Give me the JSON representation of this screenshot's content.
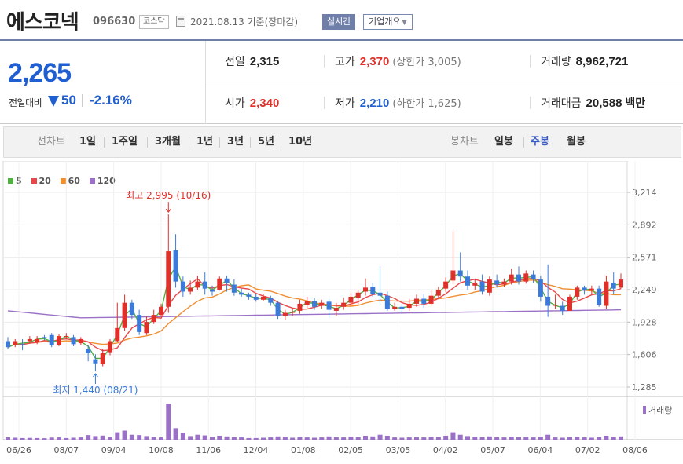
{
  "header": {
    "stock_name": "에스코넥",
    "stock_code": "096630",
    "market": "코스닥",
    "date_text": "2021.08.13 기준(장마감)",
    "realtime_label": "실시간",
    "corp_overview_label": "기업개요",
    "calendar_icon": "calendar-icon",
    "dropdown_icon": "chevron-down-icon"
  },
  "quote": {
    "price": "2,265",
    "change_label": "전일대비",
    "change_direction_icon": "down-triangle-icon",
    "change_value": "50",
    "change_pct": "-2.16%",
    "prev_close_label": "전일",
    "prev_close": "2,315",
    "high_label": "고가",
    "high": "2,370",
    "upper_limit": "(상한가 3,005)",
    "volume_label": "거래량",
    "volume": "8,962,721",
    "open_label": "시가",
    "open": "2,340",
    "low_label": "저가",
    "low": "2,210",
    "lower_limit": "(하한가 1,625)",
    "value_label": "거래대금",
    "value": "20,588",
    "value_unit": "백만",
    "colors": {
      "up": "#e0302a",
      "down": "#1f5fd1"
    }
  },
  "period_bar": {
    "line_chart_label": "선차트",
    "line_periods": [
      "1일",
      "1주일",
      "3개월",
      "1년",
      "3년",
      "5년",
      "10년"
    ],
    "candle_chart_label": "봉차트",
    "candle_periods": [
      "일봉",
      "주봉",
      "월봉"
    ],
    "active_candle": "주봉"
  },
  "chart_data": {
    "type": "candlestick",
    "title": "",
    "ma_legend": [
      {
        "name": "5",
        "color": "#52b043"
      },
      {
        "name": "20",
        "color": "#e8484a"
      },
      {
        "name": "60",
        "color": "#f08f32"
      },
      {
        "name": "120",
        "color": "#9b71c7"
      }
    ],
    "ylim": [
      1285,
      3214
    ],
    "y_ticks": [
      "3,214",
      "2,892",
      "2,571",
      "2,249",
      "1,928",
      "1,606",
      "1,285"
    ],
    "x_ticks": [
      "06/26",
      "08/07",
      "09/04",
      "10/08",
      "11/06",
      "12/04",
      "01/08",
      "02/05",
      "03/05",
      "04/02",
      "05/07",
      "06/04",
      "07/02",
      "08/06"
    ],
    "annotations": {
      "high": "최고 2,995 (10/16)",
      "low": "최저 1,440 (08/21)"
    },
    "volume_label": "거래량",
    "colors": {
      "up": "#e0302a",
      "down": "#3b7ad9",
      "volume": "#9b71c7"
    },
    "candles": [
      [
        1740,
        1680,
        1780,
        1660,
        "dn",
        15
      ],
      [
        1700,
        1740,
        1760,
        1680,
        "up",
        12
      ],
      [
        1710,
        1700,
        1760,
        1650,
        "dn",
        10
      ],
      [
        1740,
        1760,
        1790,
        1720,
        "up",
        11
      ],
      [
        1730,
        1760,
        1790,
        1710,
        "up",
        10
      ],
      [
        1780,
        1770,
        1800,
        1750,
        "dn",
        9
      ],
      [
        1800,
        1700,
        1820,
        1680,
        "dn",
        13
      ],
      [
        1700,
        1790,
        1810,
        1690,
        "up",
        14
      ],
      [
        1790,
        1790,
        1820,
        1760,
        "up",
        10
      ],
      [
        1780,
        1710,
        1800,
        1690,
        "dn",
        12
      ],
      [
        1720,
        1760,
        1780,
        1700,
        "up",
        14
      ],
      [
        1660,
        1620,
        1700,
        1540,
        "dn",
        28
      ],
      [
        1560,
        1520,
        1610,
        1440,
        "dn",
        22
      ],
      [
        1510,
        1620,
        1660,
        1490,
        "up",
        25
      ],
      [
        1630,
        1740,
        1760,
        1600,
        "up",
        16
      ],
      [
        1740,
        1870,
        2120,
        1730,
        "up",
        45
      ],
      [
        1870,
        2120,
        2200,
        1840,
        "up",
        55
      ],
      [
        2120,
        2000,
        2150,
        1960,
        "dn",
        30
      ],
      [
        2000,
        1830,
        2050,
        1800,
        "dn",
        28
      ],
      [
        1820,
        1930,
        1990,
        1800,
        "up",
        22
      ],
      [
        1930,
        2000,
        2050,
        1910,
        "up",
        16
      ],
      [
        2000,
        2080,
        2110,
        1980,
        "up",
        14
      ],
      [
        2080,
        2630,
        2995,
        2020,
        "up",
        220
      ],
      [
        2640,
        2330,
        2800,
        2270,
        "dn",
        70
      ],
      [
        2330,
        2230,
        2380,
        2180,
        "dn",
        40
      ],
      [
        2230,
        2270,
        2340,
        2200,
        "up",
        22
      ],
      [
        2270,
        2330,
        2390,
        2250,
        "up",
        30
      ],
      [
        2330,
        2260,
        2420,
        2200,
        "dn",
        26
      ],
      [
        2250,
        2230,
        2290,
        2190,
        "dn",
        18
      ],
      [
        2250,
        2360,
        2380,
        2240,
        "up",
        24
      ],
      [
        2360,
        2320,
        2390,
        2230,
        "dn",
        20
      ],
      [
        2300,
        2220,
        2350,
        2190,
        "dn",
        16
      ],
      [
        2220,
        2200,
        2260,
        2180,
        "dn",
        14
      ],
      [
        2200,
        2180,
        2220,
        2150,
        "dn",
        10
      ],
      [
        2180,
        2150,
        2210,
        2130,
        "dn",
        10
      ],
      [
        2150,
        2180,
        2210,
        2140,
        "up",
        12
      ],
      [
        2170,
        2120,
        2190,
        2090,
        "dn",
        14
      ],
      [
        2120,
        1990,
        2140,
        1960,
        "dn",
        20
      ],
      [
        1990,
        2020,
        2050,
        1950,
        "up",
        18
      ],
      [
        2020,
        2030,
        2060,
        1990,
        "up",
        12
      ],
      [
        2040,
        2110,
        2150,
        2010,
        "up",
        18
      ],
      [
        2100,
        2140,
        2180,
        2070,
        "up",
        14
      ],
      [
        2140,
        2080,
        2170,
        2050,
        "dn",
        12
      ],
      [
        2090,
        2120,
        2150,
        2060,
        "up",
        14
      ],
      [
        2130,
        2050,
        2160,
        1970,
        "dn",
        20
      ],
      [
        2040,
        2070,
        2120,
        1990,
        "up",
        16
      ],
      [
        2080,
        2120,
        2170,
        2050,
        "up",
        14
      ],
      [
        2120,
        2180,
        2220,
        2090,
        "up",
        18
      ],
      [
        2170,
        2220,
        2240,
        2100,
        "up",
        16
      ],
      [
        2230,
        2270,
        2360,
        2190,
        "up",
        24
      ],
      [
        2280,
        2210,
        2320,
        2180,
        "dn",
        20
      ],
      [
        2220,
        2190,
        2480,
        2100,
        "dn",
        30
      ],
      [
        2190,
        2060,
        2230,
        2040,
        "dn",
        24
      ],
      [
        2060,
        2080,
        2120,
        2040,
        "up",
        14
      ],
      [
        2080,
        2060,
        2110,
        2030,
        "dn",
        12
      ],
      [
        2070,
        2110,
        2160,
        2040,
        "up",
        14
      ],
      [
        2110,
        2160,
        2200,
        2080,
        "up",
        16
      ],
      [
        2160,
        2110,
        2210,
        2070,
        "dn",
        14
      ],
      [
        2110,
        2190,
        2250,
        2090,
        "up",
        18
      ],
      [
        2190,
        2250,
        2280,
        2160,
        "up",
        18
      ],
      [
        2260,
        2330,
        2370,
        2230,
        "up",
        24
      ],
      [
        2340,
        2440,
        2830,
        2300,
        "up",
        45
      ],
      [
        2440,
        2380,
        2620,
        2330,
        "dn",
        30
      ],
      [
        2380,
        2290,
        2440,
        2250,
        "dn",
        22
      ],
      [
        2290,
        2320,
        2360,
        2250,
        "up",
        18
      ],
      [
        2330,
        2230,
        2400,
        2200,
        "dn",
        16
      ],
      [
        2220,
        2350,
        2380,
        2190,
        "up",
        20
      ],
      [
        2340,
        2300,
        2400,
        2270,
        "dn",
        16
      ],
      [
        2300,
        2330,
        2360,
        2280,
        "up",
        14
      ],
      [
        2330,
        2400,
        2460,
        2300,
        "up",
        18
      ],
      [
        2400,
        2330,
        2480,
        2300,
        "dn",
        16
      ],
      [
        2330,
        2410,
        2440,
        2310,
        "up",
        18
      ],
      [
        2400,
        2350,
        2440,
        2320,
        "dn",
        14
      ],
      [
        2350,
        2180,
        2390,
        2130,
        "dn",
        18
      ],
      [
        2180,
        2090,
        2500,
        1980,
        "dn",
        30
      ],
      [
        2090,
        2100,
        2200,
        2060,
        "up",
        14
      ],
      [
        2090,
        2040,
        2130,
        2000,
        "dn",
        12
      ],
      [
        2040,
        2180,
        2200,
        2040,
        "up",
        16
      ],
      [
        2180,
        2270,
        2290,
        2150,
        "up",
        18
      ],
      [
        2270,
        2240,
        2290,
        2200,
        "dn",
        14
      ],
      [
        2240,
        2260,
        2290,
        2210,
        "up",
        12
      ],
      [
        2260,
        2100,
        2290,
        2080,
        "dn",
        16
      ],
      [
        2090,
        2330,
        2390,
        2060,
        "up",
        24
      ],
      [
        2320,
        2260,
        2420,
        2210,
        "dn",
        18
      ],
      [
        2270,
        2350,
        2410,
        2260,
        "up",
        20
      ]
    ]
  }
}
